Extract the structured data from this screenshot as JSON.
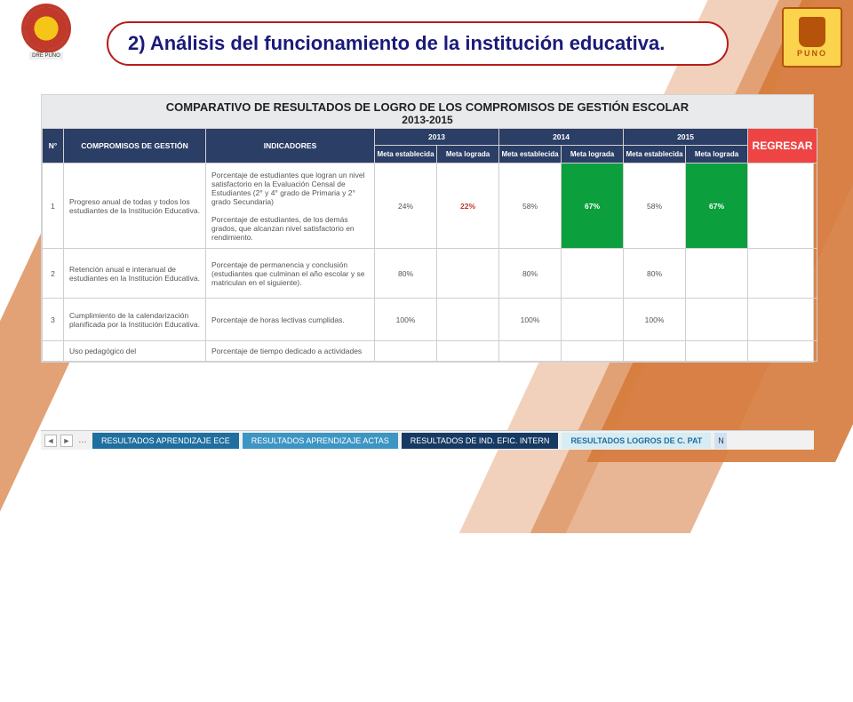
{
  "logos": {
    "left_sub": "DRE PUNO",
    "right_txt": "PUNO"
  },
  "title": "2) Análisis del funcionamiento de la institución educativa.",
  "table": {
    "main_title": "COMPARATIVO DE RESULTADOS DE LOGRO DE LOS COMPROMISOS DE GESTIÓN ESCOLAR",
    "years_range": "2013-2015",
    "regresar": "REGRESAR",
    "head": {
      "num": "N°",
      "comp": "COMPROMISOS DE GESTIÓN",
      "ind": "INDICADORES",
      "y2013": "2013",
      "y2014": "2014",
      "y2015": "2015",
      "meta_est": "Meta establecida",
      "meta_log": "Meta lograda"
    },
    "rows": [
      {
        "n": "1",
        "comp": "Progreso anual de todas y todos los estudiantes de la Institución Educativa.",
        "ind": "Porcentaje de estudiantes que logran un nivel satisfactorio en la Evaluación Censal de Estudiantes (2° y 4° grado de Primaria y 2° grado Secundaria)\n\nPorcentaje de estudiantes, de los demás grados, que alcanzan nivel satisfactorio en rendimiento.",
        "v": [
          {
            "t": "24%",
            "cls": ""
          },
          {
            "t": "22%",
            "cls": "redtxt"
          },
          {
            "t": "58%",
            "cls": ""
          },
          {
            "t": "67%",
            "cls": "green"
          },
          {
            "t": "58%",
            "cls": ""
          },
          {
            "t": "67%",
            "cls": "green"
          }
        ]
      },
      {
        "n": "2",
        "comp": "Retención anual e interanual de estudiantes en la Institución Educativa.",
        "ind": "Porcentaje de permanencia y conclusión (estudiantes que culminan el año escolar y se matriculan en el siguiente).",
        "v": [
          {
            "t": "80%",
            "cls": ""
          },
          {
            "t": "",
            "cls": ""
          },
          {
            "t": "80%",
            "cls": ""
          },
          {
            "t": "",
            "cls": ""
          },
          {
            "t": "80%",
            "cls": ""
          },
          {
            "t": "",
            "cls": ""
          }
        ]
      },
      {
        "n": "3",
        "comp": "Cumplimiento de la calendarización planificada por la Institución Educativa.",
        "ind": "Porcentaje de horas lectivas cumplidas.",
        "v": [
          {
            "t": "100%",
            "cls": ""
          },
          {
            "t": "",
            "cls": ""
          },
          {
            "t": "100%",
            "cls": ""
          },
          {
            "t": "",
            "cls": ""
          },
          {
            "t": "100%",
            "cls": ""
          },
          {
            "t": "",
            "cls": ""
          }
        ]
      },
      {
        "n": "",
        "comp": "Uso pedagógico del",
        "ind": "Porcentaje de tiempo dedicado a actividades",
        "v": [
          {
            "t": "",
            "cls": ""
          },
          {
            "t": "",
            "cls": ""
          },
          {
            "t": "",
            "cls": ""
          },
          {
            "t": "",
            "cls": ""
          },
          {
            "t": "",
            "cls": ""
          },
          {
            "t": "",
            "cls": ""
          }
        ]
      }
    ]
  },
  "tabs": {
    "t1": "RESULTADOS APRENDIZAJE ECE",
    "t2": "RESULTADOS APRENDIZAJE ACTAS",
    "t3": "RESULTADOS DE IND. EFIC. INTERN",
    "t4": "RESULTADOS LOGROS DE C. PAT",
    "t5": "N"
  },
  "colors": {
    "brand_red": "#b91c1c",
    "table_head": "#2b3e66",
    "green": "#0c9f3e",
    "regresar": "#ef4444",
    "orange": "#d67a3c",
    "title_text": "#1a1a7a"
  },
  "col_widths": {
    "n": 24,
    "comp": 160,
    "ind": 190,
    "val": 70,
    "regresar": 78
  }
}
